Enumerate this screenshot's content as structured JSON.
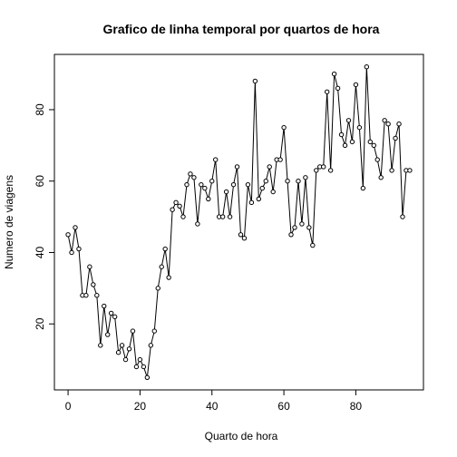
{
  "chart_data": {
    "type": "line",
    "title": "Grafico de linha temporal por quartos de hora",
    "x_label": "Quarto de hora",
    "y_label": "Numero de viagens",
    "x": [
      0,
      1,
      2,
      3,
      4,
      5,
      6,
      7,
      8,
      9,
      10,
      11,
      12,
      13,
      14,
      15,
      16,
      17,
      18,
      19,
      20,
      21,
      22,
      23,
      24,
      25,
      26,
      27,
      28,
      29,
      30,
      31,
      32,
      33,
      34,
      35,
      36,
      37,
      38,
      39,
      40,
      41,
      42,
      43,
      44,
      45,
      46,
      47,
      48,
      49,
      50,
      51,
      52,
      53,
      54,
      55,
      56,
      57,
      58,
      59,
      60,
      61,
      62,
      63,
      64,
      65,
      66,
      67,
      68,
      69,
      70,
      71,
      72,
      73,
      74,
      75,
      76,
      77,
      78,
      79,
      80,
      81,
      82,
      83,
      84,
      85,
      86,
      87,
      88,
      89,
      90,
      91,
      92,
      93,
      94,
      95
    ],
    "values": [
      45,
      40,
      47,
      41,
      28,
      28,
      36,
      31,
      28,
      14,
      25,
      17,
      23,
      22,
      12,
      14,
      10,
      13,
      18,
      8,
      10,
      8,
      5,
      14,
      18,
      30,
      36,
      41,
      33,
      52,
      54,
      53,
      50,
      59,
      62,
      61,
      48,
      59,
      58,
      55,
      60,
      66,
      50,
      50,
      57,
      50,
      59,
      64,
      45,
      44,
      59,
      54,
      88,
      55,
      58,
      60,
      64,
      57,
      66,
      66,
      75,
      60,
      45,
      47,
      60,
      48,
      61,
      47,
      42,
      63,
      64,
      64,
      85,
      63,
      90,
      86,
      73,
      70,
      77,
      71,
      87,
      75,
      58,
      92,
      71,
      70,
      66,
      61,
      77,
      76,
      63,
      72,
      76,
      50,
      63,
      63
    ],
    "color": "#000000",
    "xlim": [
      -3.8,
      98.8
    ],
    "ylim": [
      1.52,
      95.48
    ],
    "xticks": [
      0,
      20,
      40,
      60,
      80
    ],
    "yticks": [
      20,
      40,
      60,
      80
    ]
  }
}
